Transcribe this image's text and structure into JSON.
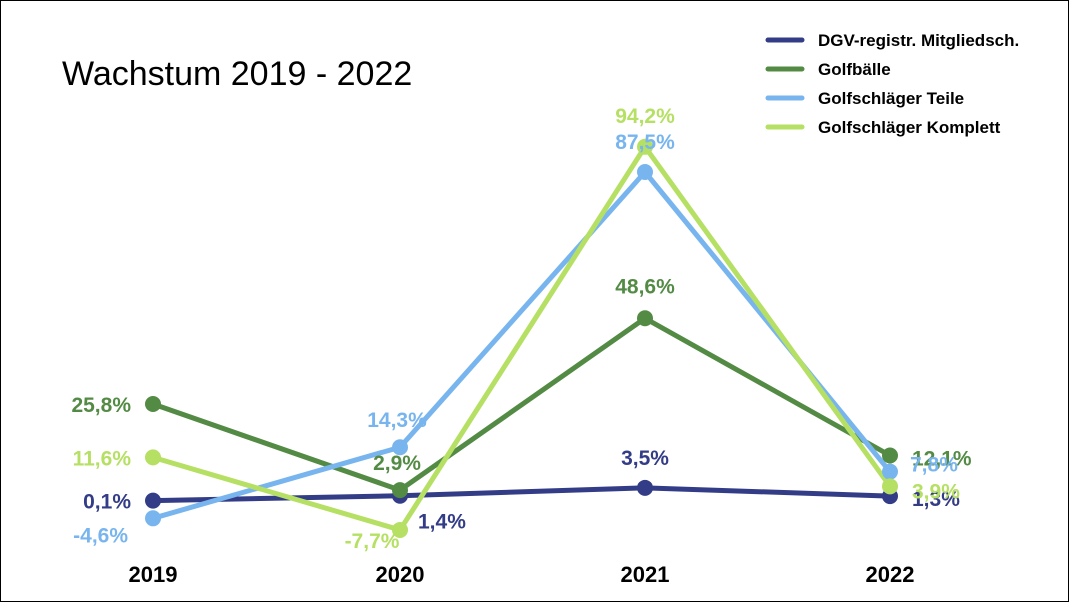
{
  "chart_data": {
    "type": "line",
    "title": "Wachstum 2019 - 2022",
    "categories": [
      "2019",
      "2020",
      "2021",
      "2022"
    ],
    "legend_position": "top-right",
    "grid": false,
    "ylim": [
      -10,
      100
    ],
    "series": [
      {
        "name": "DGV-registr. Mitgliedsch.",
        "color": "#333c86",
        "values": [
          0.1,
          1.4,
          3.5,
          1.3
        ],
        "labels": [
          "0,1%",
          "1,4%",
          "3,5%",
          "1,3%"
        ]
      },
      {
        "name": "Golfbälle",
        "color": "#538b45",
        "values": [
          25.8,
          2.9,
          48.6,
          12.1
        ],
        "labels": [
          "25,8%",
          "2,9%",
          "48,6%",
          "12,1%"
        ]
      },
      {
        "name": "Golfschläger Teile",
        "color": "#78b5ee",
        "values": [
          -4.6,
          14.3,
          87.5,
          7.8
        ],
        "labels": [
          "-4,6%",
          "14,3%",
          "87,5%",
          "7,8%"
        ]
      },
      {
        "name": "Golfschläger Komplett",
        "color": "#b5e063",
        "values": [
          11.6,
          -7.7,
          94.2,
          3.9
        ],
        "labels": [
          "11,6%",
          "-7,7%",
          "94,2%",
          "3,9%"
        ]
      }
    ]
  }
}
